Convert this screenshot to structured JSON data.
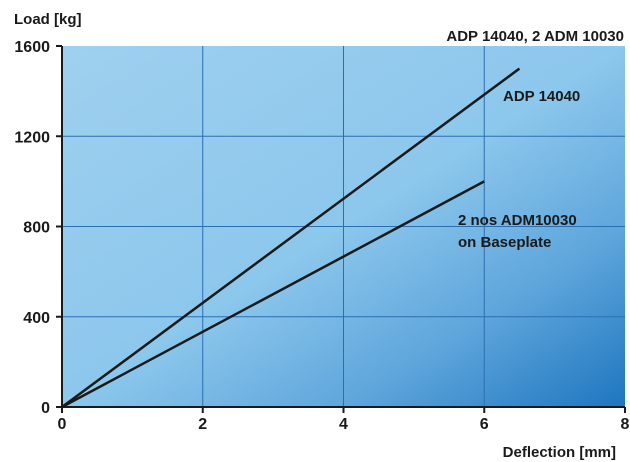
{
  "chart_data": {
    "type": "line",
    "title": "ADP 14040, 2 ADM 10030",
    "xlabel": "Deflection [mm]",
    "ylabel": "Load [kg]",
    "xlim": [
      0,
      8
    ],
    "ylim": [
      0,
      1600
    ],
    "xticks": [
      "0",
      "2",
      "4",
      "6",
      "8"
    ],
    "yticks": [
      "0",
      "400",
      "800",
      "1200",
      "1600"
    ],
    "grid": true,
    "series": [
      {
        "name": "ADP 14040",
        "x": [
          0,
          6.5
        ],
        "y": [
          0,
          1500
        ]
      },
      {
        "name": "2 nos ADM10030 on Baseplate",
        "x": [
          0,
          6
        ],
        "y": [
          0,
          1000
        ]
      }
    ],
    "annotations": [
      {
        "text": "ADP 14040",
        "series": 0
      },
      {
        "text": "2 nos ADM10030",
        "series": 1
      },
      {
        "text": "on Baseplate",
        "series": 1
      }
    ],
    "colors": {
      "gradient_light": "#a9d6f2",
      "gradient_mid": "#7fbde6",
      "gradient_dark": "#1e76bf",
      "grid": "#2b6fb3",
      "line": "#1a1a1a"
    }
  }
}
